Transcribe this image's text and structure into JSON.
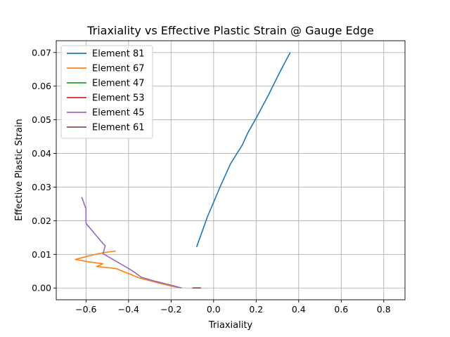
{
  "chart_data": {
    "type": "line",
    "title": "Triaxiality vs Effective Plastic Strain @ Gauge Edge",
    "xlabel": "Triaxiality",
    "ylabel": "Effective Plastic Strain",
    "xlim": [
      -0.74,
      0.9
    ],
    "ylim": [
      -0.0035,
      0.0735
    ],
    "x_ticks": [
      -0.6,
      -0.4,
      -0.2,
      0.0,
      0.2,
      0.4,
      0.6,
      0.8
    ],
    "x_tick_labels": [
      "−0.6",
      "−0.4",
      "−0.2",
      "0.0",
      "0.2",
      "0.4",
      "0.6",
      "0.8"
    ],
    "y_ticks": [
      0.0,
      0.01,
      0.02,
      0.03,
      0.04,
      0.05,
      0.06,
      0.07
    ],
    "y_tick_labels": [
      "0.00",
      "0.01",
      "0.02",
      "0.03",
      "0.04",
      "0.05",
      "0.06",
      "0.07"
    ],
    "grid": true,
    "legend_position": "top-left",
    "series": [
      {
        "name": "Element 81",
        "color": "#1f77b4",
        "x": [
          -0.08,
          -0.03,
          0.03,
          0.08,
          0.135,
          0.16,
          0.2,
          0.255,
          0.31,
          0.36
        ],
        "y": [
          0.0122,
          0.021,
          0.03,
          0.037,
          0.0425,
          0.046,
          0.0505,
          0.057,
          0.064,
          0.07
        ]
      },
      {
        "name": "Element 67",
        "color": "#ff7f0e",
        "x": [
          -0.46,
          -0.52,
          -0.59,
          -0.65,
          -0.59,
          -0.52,
          -0.55,
          -0.46,
          -0.35,
          -0.26,
          -0.2,
          -0.16
        ],
        "y": [
          0.011,
          0.0105,
          0.0095,
          0.0085,
          0.0078,
          0.0072,
          0.0064,
          0.0058,
          0.003,
          0.0015,
          0.0006,
          0.0001
        ]
      },
      {
        "name": "Element 47",
        "color": "#2ca02c",
        "x": [
          -0.1,
          -0.06
        ],
        "y": [
          0.0,
          0.0
        ]
      },
      {
        "name": "Element 53",
        "color": "#d62728",
        "x": [
          -0.1,
          -0.06
        ],
        "y": [
          0.0,
          0.0
        ]
      },
      {
        "name": "Element 45",
        "color": "#9467bd",
        "x": [
          -0.62,
          -0.6,
          -0.6,
          -0.6,
          -0.52,
          -0.51,
          -0.52,
          -0.4,
          -0.37,
          -0.34,
          -0.28,
          -0.21,
          -0.15
        ],
        "y": [
          0.027,
          0.0235,
          0.0228,
          0.0192,
          0.0132,
          0.0125,
          0.0102,
          0.0058,
          0.0046,
          0.0032,
          0.0021,
          0.001,
          0.0
        ]
      },
      {
        "name": "Element 61",
        "color": "#8c564b",
        "x": [
          -0.1,
          -0.06
        ],
        "y": [
          0.0,
          0.0
        ]
      }
    ]
  }
}
